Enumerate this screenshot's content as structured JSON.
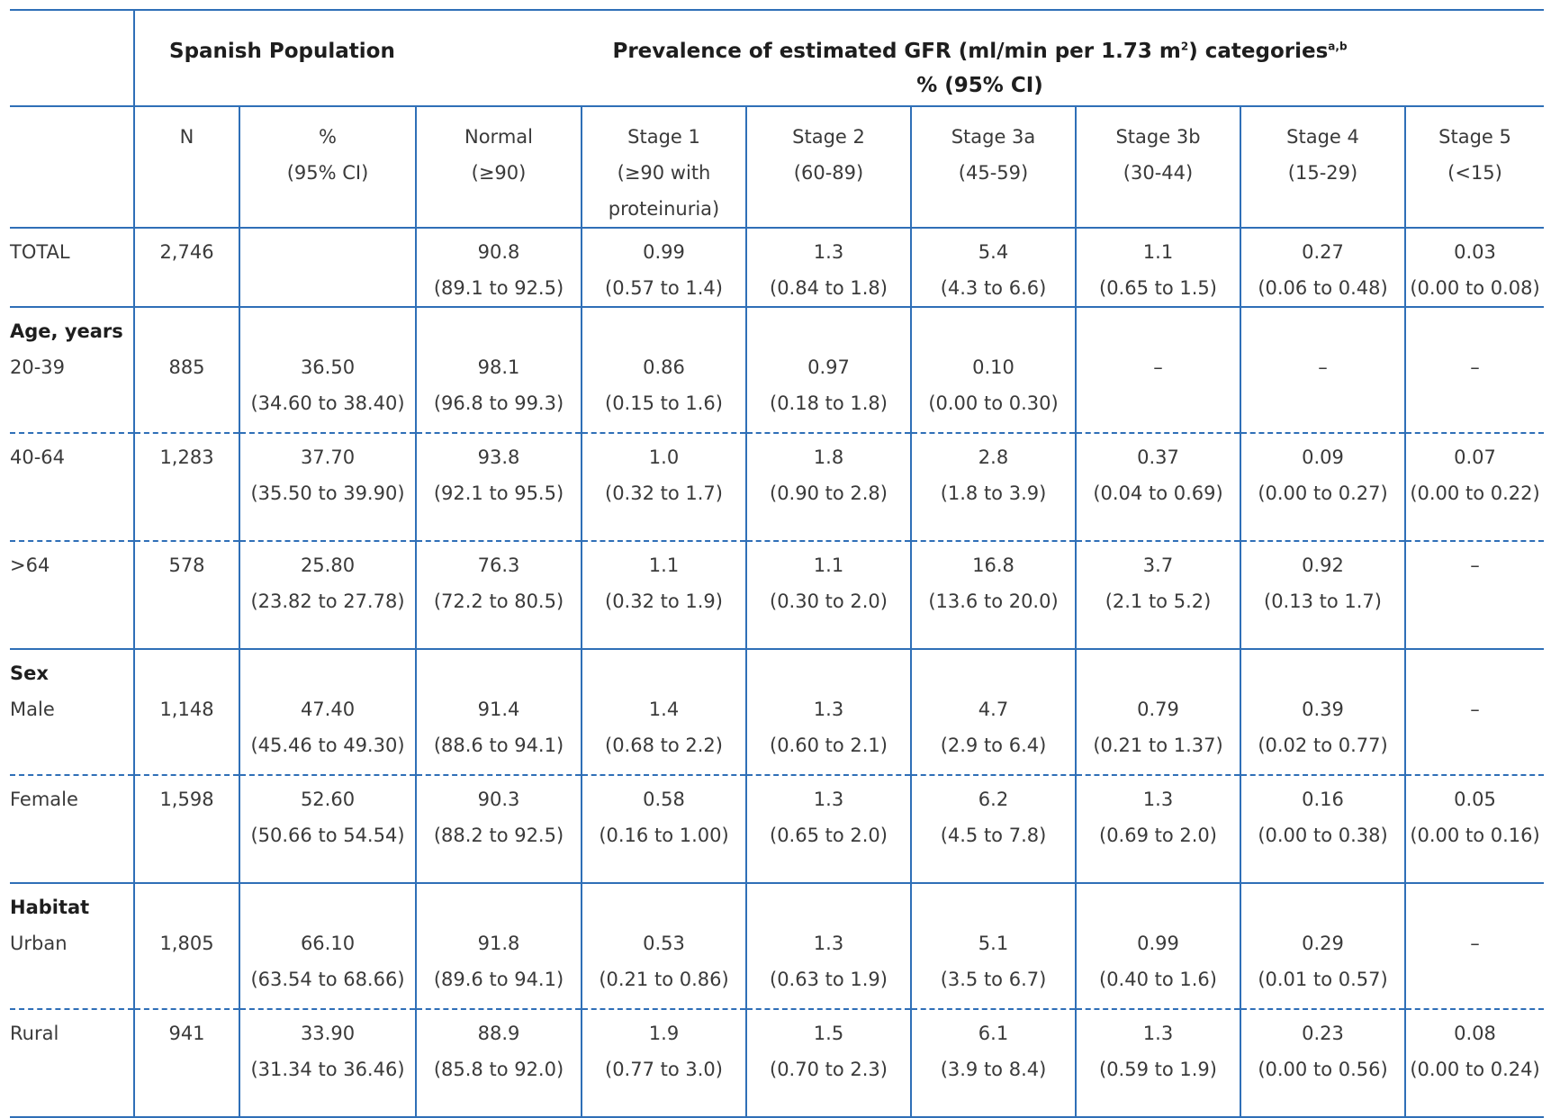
{
  "header": {
    "spanish_population": "Spanish Population",
    "prevalence_title_pre": "Prevalence of estimated GFR (ml/min per 1.73 m",
    "prevalence_title_sup": "2",
    "prevalence_title_post": ") categories",
    "prevalence_title_footnote": "a,b",
    "prevalence_sub": "% (95% CI)"
  },
  "columns": [
    {
      "l1": "N",
      "l2": "",
      "l3": ""
    },
    {
      "l1": "%",
      "l2": "(95% CI)",
      "l3": ""
    },
    {
      "l1": "Normal",
      "l2": "(≥90)",
      "l3": ""
    },
    {
      "l1": "Stage 1",
      "l2": "(≥90 with",
      "l3": "proteinuria)"
    },
    {
      "l1": "Stage 2",
      "l2": "(60-89)",
      "l3": ""
    },
    {
      "l1": "Stage 3a",
      "l2": "(45-59)",
      "l3": ""
    },
    {
      "l1": "Stage 3b",
      "l2": "(30-44)",
      "l3": ""
    },
    {
      "l1": "Stage 4",
      "l2": "(15-29)",
      "l3": ""
    },
    {
      "l1": "Stage 5",
      "l2": "(<15)",
      "l3": ""
    }
  ],
  "rows": [
    {
      "group": "",
      "label": "TOTAL",
      "n": "2,746",
      "pct": [
        "",
        ""
      ],
      "vals": [
        [
          "90.8",
          "(89.1 to 92.5)"
        ],
        [
          "0.99",
          "(0.57 to 1.4)"
        ],
        [
          "1.3",
          "(0.84 to 1.8)"
        ],
        [
          "5.4",
          "(4.3 to 6.6)"
        ],
        [
          "1.1",
          "(0.65 to 1.5)"
        ],
        [
          "0.27",
          "(0.06 to 0.48)"
        ],
        [
          "0.03",
          "(0.00 to 0.08)"
        ]
      ]
    },
    {
      "group": "Age, years",
      "label": "20-39",
      "n": "885",
      "pct": [
        "36.50",
        "(34.60 to 38.40)"
      ],
      "vals": [
        [
          "98.1",
          "(96.8 to 99.3)"
        ],
        [
          "0.86",
          "(0.15 to 1.6)"
        ],
        [
          "0.97",
          "(0.18 to 1.8)"
        ],
        [
          "0.10",
          "(0.00 to 0.30)"
        ],
        [
          "–",
          ""
        ],
        [
          "–",
          ""
        ],
        [
          "–",
          ""
        ]
      ]
    },
    {
      "group": "",
      "label": "40-64",
      "n": "1,283",
      "pct": [
        "37.70",
        "(35.50 to 39.90)"
      ],
      "vals": [
        [
          "93.8",
          "(92.1 to 95.5)"
        ],
        [
          "1.0",
          "(0.32 to 1.7)"
        ],
        [
          "1.8",
          "(0.90 to 2.8)"
        ],
        [
          "2.8",
          "(1.8 to 3.9)"
        ],
        [
          "0.37",
          "(0.04 to 0.69)"
        ],
        [
          "0.09",
          "(0.00 to 0.27)"
        ],
        [
          "0.07",
          "(0.00 to 0.22)"
        ]
      ]
    },
    {
      "group": "",
      "label": ">64",
      "n": "578",
      "pct": [
        "25.80",
        "(23.82 to 27.78)"
      ],
      "vals": [
        [
          "76.3",
          "(72.2 to 80.5)"
        ],
        [
          "1.1",
          "(0.32 to 1.9)"
        ],
        [
          "1.1",
          "(0.30 to 2.0)"
        ],
        [
          "16.8",
          "(13.6 to 20.0)"
        ],
        [
          "3.7",
          "(2.1 to 5.2)"
        ],
        [
          "0.92",
          "(0.13 to 1.7)"
        ],
        [
          "–",
          ""
        ]
      ]
    },
    {
      "group": "Sex",
      "label": "Male",
      "n": "1,148",
      "pct": [
        "47.40",
        "(45.46 to 49.30)"
      ],
      "vals": [
        [
          "91.4",
          "(88.6 to 94.1)"
        ],
        [
          "1.4",
          "(0.68 to 2.2)"
        ],
        [
          "1.3",
          "(0.60 to 2.1)"
        ],
        [
          "4.7",
          "(2.9 to 6.4)"
        ],
        [
          "0.79",
          "(0.21 to 1.37)"
        ],
        [
          "0.39",
          "(0.02 to 0.77)"
        ],
        [
          "–",
          ""
        ]
      ]
    },
    {
      "group": "",
      "label": "Female",
      "n": "1,598",
      "pct": [
        "52.60",
        "(50.66 to 54.54)"
      ],
      "vals": [
        [
          "90.3",
          "(88.2 to 92.5)"
        ],
        [
          "0.58",
          "(0.16 to 1.00)"
        ],
        [
          "1.3",
          "(0.65 to 2.0)"
        ],
        [
          "6.2",
          "(4.5 to 7.8)"
        ],
        [
          "1.3",
          "(0.69 to 2.0)"
        ],
        [
          "0.16",
          "(0.00 to 0.38)"
        ],
        [
          "0.05",
          "(0.00 to 0.16)"
        ]
      ]
    },
    {
      "group": "Habitat",
      "label": "Urban",
      "n": "1,805",
      "pct": [
        "66.10",
        "(63.54 to 68.66)"
      ],
      "vals": [
        [
          "91.8",
          "(89.6 to 94.1)"
        ],
        [
          "0.53",
          "(0.21 to 0.86)"
        ],
        [
          "1.3",
          "(0.63 to 1.9)"
        ],
        [
          "5.1",
          "(3.5 to 6.7)"
        ],
        [
          "0.99",
          "(0.40 to 1.6)"
        ],
        [
          "0.29",
          "(0.01 to 0.57)"
        ],
        [
          "–",
          ""
        ]
      ]
    },
    {
      "group": "",
      "label": "Rural",
      "n": "941",
      "pct": [
        "33.90",
        "(31.34 to 36.46)"
      ],
      "vals": [
        [
          "88.9",
          "(85.8 to 92.0)"
        ],
        [
          "1.9",
          "(0.77 to 3.0)"
        ],
        [
          "1.5",
          "(0.70 to 2.3)"
        ],
        [
          "6.1",
          "(3.9 to 8.4)"
        ],
        [
          "1.3",
          "(0.59 to 1.9)"
        ],
        [
          "0.23",
          "(0.00 to 0.56)"
        ],
        [
          "0.08",
          "(0.00 to 0.24)"
        ]
      ]
    }
  ]
}
